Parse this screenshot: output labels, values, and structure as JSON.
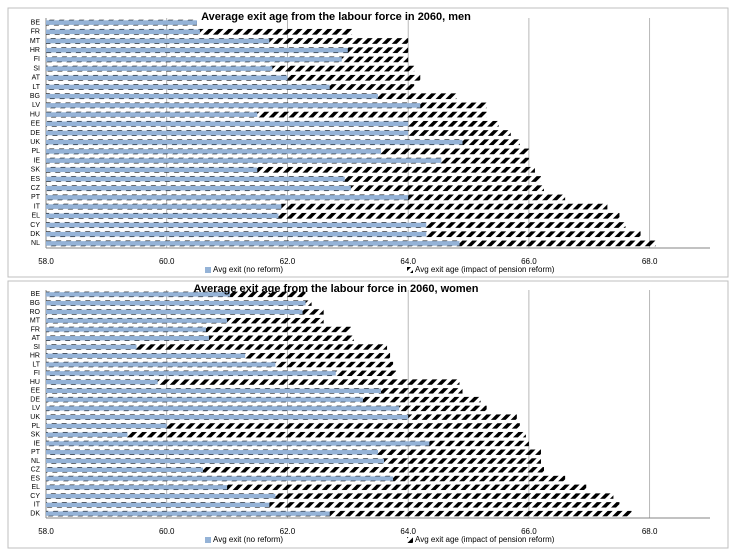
{
  "chart_data": [
    {
      "type": "bar",
      "title": "Average exit age from the labour force in 2060, men",
      "categories": [
        "BE",
        "FR",
        "MT",
        "HR",
        "FI",
        "SI",
        "AT",
        "LT",
        "BG",
        "LV",
        "HU",
        "EE",
        "DE",
        "UK",
        "PL",
        "IE",
        "SK",
        "ES",
        "CZ",
        "PT",
        "IT",
        "EL",
        "CY",
        "DK",
        "NL"
      ],
      "series": [
        {
          "name": "Avg exit age (impact of pension reform)",
          "color": "#ff0000",
          "hatch": true,
          "values": [
            60.5,
            63.07,
            64.0,
            64.0,
            64.0,
            64.1,
            64.2,
            64.1,
            64.8,
            65.3,
            65.3,
            65.5,
            65.7,
            65.85,
            66.0,
            66.0,
            66.1,
            66.2,
            66.25,
            66.6,
            67.3,
            67.5,
            67.6,
            67.85,
            68.1
          ]
        },
        {
          "name": "Avg exit (no reform)",
          "color": "#95b3d7",
          "values": [
            60.5,
            60.55,
            61.7,
            63.0,
            62.9,
            61.75,
            62.0,
            62.7,
            63.5,
            64.2,
            61.5,
            64.0,
            64.0,
            64.9,
            63.55,
            64.55,
            61.5,
            62.95,
            63.05,
            64.0,
            61.9,
            61.85,
            64.3,
            64.3,
            64.85
          ]
        }
      ],
      "xlim": [
        58,
        69
      ],
      "xticks": [
        {
          "value": 58,
          "label": "58.0"
        },
        {
          "value": 60,
          "label": "60.0"
        },
        {
          "value": 62,
          "label": "62.0"
        },
        {
          "value": 64,
          "label": "64.0"
        },
        {
          "value": 66,
          "label": "66.0"
        },
        {
          "value": 68,
          "label": "68.0"
        }
      ],
      "grid": true
    },
    {
      "type": "bar",
      "title": "Average exit age from the labour force in 2060, women",
      "categories": [
        "BE",
        "BG",
        "RO",
        "MT",
        "FR",
        "AT",
        "SI",
        "HR",
        "LT",
        "FI",
        "HU",
        "EE",
        "DE",
        "LV",
        "UK",
        "PL",
        "SK",
        "IE",
        "PT",
        "NL",
        "CZ",
        "ES",
        "EL",
        "CY",
        "IT",
        "DK"
      ],
      "series": [
        {
          "name": "Avg exit age (impact of pension reform)",
          "color": "#ff0000",
          "hatch": true,
          "values": [
            62.3,
            62.4,
            62.6,
            62.6,
            63.05,
            63.1,
            63.65,
            63.7,
            63.75,
            63.8,
            64.85,
            64.9,
            65.2,
            65.3,
            65.8,
            65.85,
            65.95,
            66.0,
            66.2,
            66.2,
            66.25,
            66.6,
            66.95,
            67.4,
            67.5,
            67.7
          ]
        },
        {
          "name": "Avg exit (no reform)",
          "color": "#95b3d7",
          "values": [
            61.05,
            62.3,
            62.25,
            61.0,
            60.65,
            60.7,
            59.5,
            61.3,
            61.8,
            62.8,
            59.85,
            63.55,
            63.25,
            63.85,
            64.0,
            60.0,
            59.35,
            64.35,
            63.5,
            63.6,
            60.6,
            63.75,
            61.0,
            61.8,
            61.7,
            62.7
          ]
        }
      ],
      "xlim": [
        58,
        69
      ],
      "xticks": [
        {
          "value": 58,
          "label": "58.0"
        },
        {
          "value": 60,
          "label": "60.0"
        },
        {
          "value": 62,
          "label": "62.0"
        },
        {
          "value": 64,
          "label": "64.0"
        },
        {
          "value": 66,
          "label": "66.0"
        },
        {
          "value": 68,
          "label": "68.0"
        }
      ],
      "grid": true
    }
  ]
}
